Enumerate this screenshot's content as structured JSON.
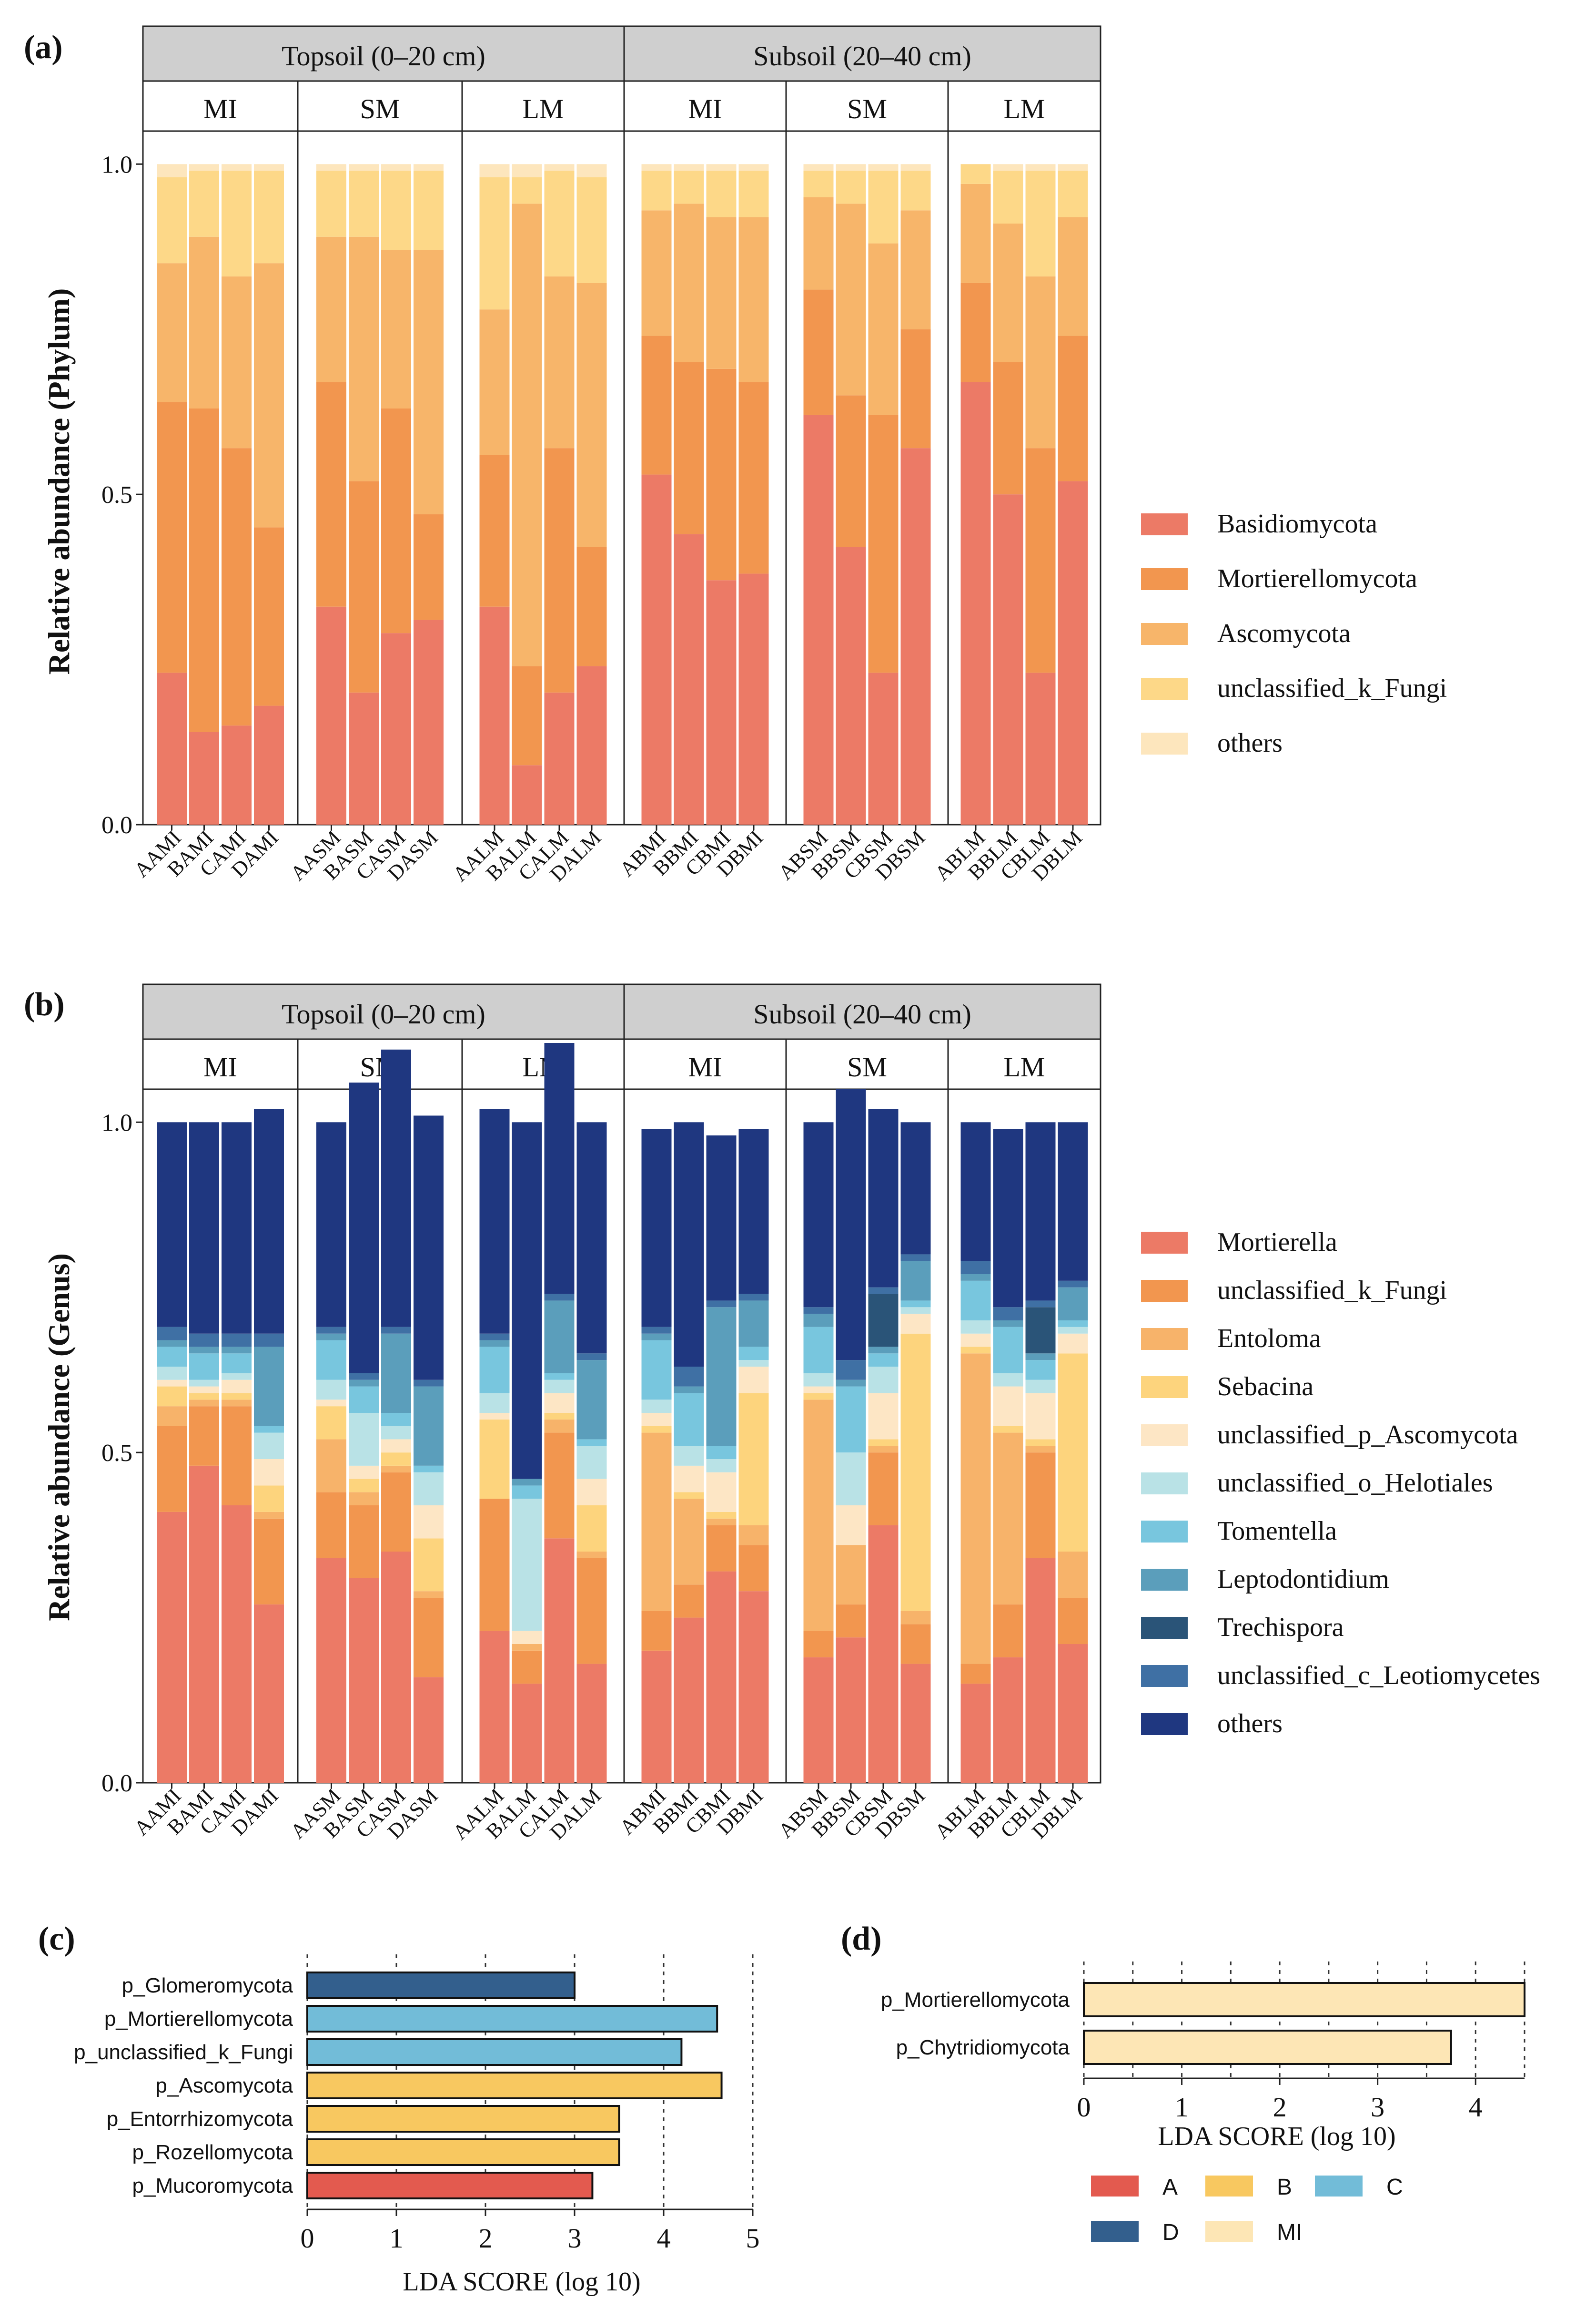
{
  "colors": {
    "strip_bg": "#cfcfcf",
    "phylum": [
      "#ec7a66",
      "#f2964f",
      "#f7b56a",
      "#fdd888",
      "#fde6bd"
    ],
    "genus": [
      "#ec7a66",
      "#f2964f",
      "#f7b36a",
      "#fdd47d",
      "#fde6c5",
      "#b9e2e6",
      "#78c6de",
      "#5b9ebb",
      "#2a5478",
      "#3f70a4",
      "#1f3780"
    ],
    "lefse": {
      "A": "#e35a4f",
      "B": "#f8c860",
      "C": "#72bcd8",
      "D": "#335f8d",
      "MI": "#fde6b5"
    }
  },
  "chart_data": [
    {
      "panel_label": "(a)",
      "type": "bar",
      "subtype": "stacked-relative-abundance",
      "ylabel": "Relative abundance (Phylum)",
      "ylim": [
        0,
        1.05
      ],
      "yticks": [
        "0.0",
        "0.5",
        "1.0"
      ],
      "strips": [
        "Topsoil (0–20 cm)",
        "Subsoil (20–40 cm)"
      ],
      "groups": [
        {
          "name": "MI",
          "samples": [
            "AAMI",
            "BAMI",
            "CAMI",
            "DAMI"
          ]
        },
        {
          "name": "SM",
          "samples": [
            "AASM",
            "BASM",
            "CASM",
            "DASM"
          ]
        },
        {
          "name": "LM",
          "samples": [
            "AALM",
            "BALM",
            "CALM",
            "DALM"
          ]
        },
        {
          "name": "MI",
          "samples": [
            "ABMI",
            "BBMI",
            "CBMI",
            "DBMI"
          ]
        },
        {
          "name": "SM",
          "samples": [
            "ABSM",
            "BBSM",
            "CBSM",
            "DBSM"
          ]
        },
        {
          "name": "LM",
          "samples": [
            "ABLM",
            "BBLM",
            "CBLM",
            "DBLM"
          ]
        }
      ],
      "legend": [
        "Basidiomycota",
        "Mortierellomycota",
        "Ascomycota",
        "unclassified_k_Fungi",
        "others"
      ],
      "series": [
        {
          "name": "Basidiomycota",
          "values": [
            0.23,
            0.14,
            0.15,
            0.18,
            0.33,
            0.2,
            0.29,
            0.31,
            0.33,
            0.09,
            0.2,
            0.24,
            0.53,
            0.44,
            0.37,
            0.38,
            0.62,
            0.42,
            0.23,
            0.57,
            0.67,
            0.5,
            0.23,
            0.52
          ]
        },
        {
          "name": "Mortierellomycota",
          "values": [
            0.41,
            0.49,
            0.42,
            0.27,
            0.34,
            0.32,
            0.34,
            0.16,
            0.23,
            0.15,
            0.37,
            0.18,
            0.21,
            0.26,
            0.32,
            0.29,
            0.19,
            0.23,
            0.39,
            0.18,
            0.15,
            0.2,
            0.34,
            0.22
          ]
        },
        {
          "name": "Ascomycota",
          "values": [
            0.21,
            0.26,
            0.26,
            0.4,
            0.22,
            0.37,
            0.24,
            0.4,
            0.22,
            0.7,
            0.26,
            0.4,
            0.19,
            0.24,
            0.23,
            0.25,
            0.14,
            0.29,
            0.26,
            0.18,
            0.15,
            0.21,
            0.26,
            0.18
          ]
        },
        {
          "name": "unclassified_k_Fungi",
          "values": [
            0.13,
            0.1,
            0.16,
            0.14,
            0.1,
            0.1,
            0.12,
            0.12,
            0.2,
            0.04,
            0.16,
            0.16,
            0.06,
            0.05,
            0.07,
            0.07,
            0.04,
            0.05,
            0.11,
            0.06,
            0.03,
            0.08,
            0.16,
            0.07
          ]
        },
        {
          "name": "others",
          "values": [
            0.02,
            0.01,
            0.01,
            0.01,
            0.01,
            0.01,
            0.01,
            0.01,
            0.02,
            0.02,
            0.01,
            0.02,
            0.01,
            0.01,
            0.01,
            0.01,
            0.01,
            0.01,
            0.01,
            0.01,
            0.0,
            0.01,
            0.01,
            0.01
          ]
        }
      ]
    },
    {
      "panel_label": "(b)",
      "type": "bar",
      "subtype": "stacked-relative-abundance",
      "ylabel": "Relative abundance (Genus)",
      "ylim": [
        0,
        1.05
      ],
      "yticks": [
        "0.0",
        "0.5",
        "1.0"
      ],
      "strips": [
        "Topsoil (0–20 cm)",
        "Subsoil (20–40 cm)"
      ],
      "groups": [
        {
          "name": "MI",
          "samples": [
            "AAMI",
            "BAMI",
            "CAMI",
            "DAMI"
          ]
        },
        {
          "name": "SM",
          "samples": [
            "AASM",
            "BASM",
            "CASM",
            "DASM"
          ]
        },
        {
          "name": "LM",
          "samples": [
            "AALM",
            "BALM",
            "CALM",
            "DALM"
          ]
        },
        {
          "name": "MI",
          "samples": [
            "ABMI",
            "BBMI",
            "CBMI",
            "DBMI"
          ]
        },
        {
          "name": "SM",
          "samples": [
            "ABSM",
            "BBSM",
            "CBSM",
            "DBSM"
          ]
        },
        {
          "name": "LM",
          "samples": [
            "ABLM",
            "BBLM",
            "CBLM",
            "DBLM"
          ]
        }
      ],
      "legend": [
        "Mortierella",
        "unclassified_k_Fungi",
        "Entoloma",
        "Sebacina",
        "unclassified_p_Ascomycota",
        "unclassified_o_Helotiales",
        "Tomentella",
        "Leptodontidium",
        "Trechispora",
        "unclassified_c_Leotiomycetes",
        "others"
      ],
      "series": [
        {
          "name": "Mortierella",
          "values": [
            0.41,
            0.48,
            0.42,
            0.27,
            0.34,
            0.31,
            0.35,
            0.16,
            0.23,
            0.15,
            0.37,
            0.18,
            0.2,
            0.25,
            0.32,
            0.29,
            0.19,
            0.22,
            0.39,
            0.18,
            0.15,
            0.19,
            0.34,
            0.21
          ]
        },
        {
          "name": "unclassified_k_Fungi",
          "values": [
            0.13,
            0.09,
            0.15,
            0.13,
            0.1,
            0.11,
            0.12,
            0.12,
            0.2,
            0.05,
            0.16,
            0.16,
            0.06,
            0.05,
            0.07,
            0.07,
            0.04,
            0.05,
            0.11,
            0.06,
            0.03,
            0.08,
            0.16,
            0.07
          ]
        },
        {
          "name": "Entoloma",
          "values": [
            0.03,
            0.01,
            0.01,
            0.01,
            0.08,
            0.02,
            0.01,
            0.01,
            0.0,
            0.01,
            0.02,
            0.01,
            0.27,
            0.13,
            0.01,
            0.03,
            0.35,
            0.09,
            0.01,
            0.02,
            0.47,
            0.26,
            0.01,
            0.07
          ]
        },
        {
          "name": "Sebacina",
          "values": [
            0.03,
            0.01,
            0.01,
            0.04,
            0.05,
            0.02,
            0.02,
            0.08,
            0.12,
            0.0,
            0.01,
            0.07,
            0.01,
            0.01,
            0.01,
            0.2,
            0.01,
            0.0,
            0.01,
            0.42,
            0.01,
            0.01,
            0.01,
            0.3
          ]
        },
        {
          "name": "unclassified_p_Ascomycota",
          "values": [
            0.01,
            0.01,
            0.02,
            0.04,
            0.01,
            0.02,
            0.02,
            0.05,
            0.01,
            0.02,
            0.03,
            0.04,
            0.02,
            0.04,
            0.06,
            0.04,
            0.01,
            0.06,
            0.07,
            0.03,
            0.02,
            0.06,
            0.07,
            0.03
          ]
        },
        {
          "name": "unclassified_o_Helotiales",
          "values": [
            0.02,
            0.01,
            0.01,
            0.04,
            0.03,
            0.08,
            0.02,
            0.05,
            0.03,
            0.2,
            0.02,
            0.05,
            0.02,
            0.03,
            0.02,
            0.01,
            0.02,
            0.08,
            0.04,
            0.01,
            0.02,
            0.02,
            0.02,
            0.01
          ]
        },
        {
          "name": "Tomentella",
          "values": [
            0.03,
            0.04,
            0.03,
            0.01,
            0.06,
            0.04,
            0.02,
            0.01,
            0.07,
            0.02,
            0.01,
            0.01,
            0.09,
            0.08,
            0.02,
            0.02,
            0.07,
            0.1,
            0.02,
            0.01,
            0.06,
            0.07,
            0.03,
            0.01
          ]
        },
        {
          "name": "Leptodontidium",
          "values": [
            0.01,
            0.01,
            0.01,
            0.12,
            0.01,
            0.01,
            0.12,
            0.12,
            0.01,
            0.01,
            0.11,
            0.12,
            0.01,
            0.01,
            0.21,
            0.07,
            0.02,
            0.01,
            0.01,
            0.06,
            0.01,
            0.01,
            0.01,
            0.05
          ]
        },
        {
          "name": "Trechispora",
          "values": [
            0.0,
            0.0,
            0.0,
            0.0,
            0.0,
            0.0,
            0.0,
            0.0,
            0.0,
            0.0,
            0.0,
            0.0,
            0.0,
            0.0,
            0.0,
            0.0,
            0.0,
            0.0,
            0.08,
            0.0,
            0.0,
            0.0,
            0.07,
            0.0
          ]
        },
        {
          "name": "unclassified_c_Leotiomycetes",
          "values": [
            0.02,
            0.02,
            0.02,
            0.02,
            0.01,
            0.01,
            0.01,
            0.01,
            0.01,
            0.0,
            0.01,
            0.01,
            0.01,
            0.03,
            0.01,
            0.01,
            0.01,
            0.03,
            0.01,
            0.01,
            0.02,
            0.02,
            0.01,
            0.01
          ]
        },
        {
          "name": "others",
          "values": [
            0.31,
            0.32,
            0.32,
            0.34,
            0.31,
            0.44,
            0.42,
            0.4,
            0.34,
            0.54,
            0.38,
            0.35,
            0.3,
            0.37,
            0.25,
            0.25,
            0.28,
            0.41,
            0.27,
            0.2,
            0.21,
            0.27,
            0.27,
            0.24
          ]
        }
      ]
    },
    {
      "panel_label": "(c)",
      "type": "bar",
      "subtype": "horizontal-lda",
      "xlabel": "LDA SCORE (log 10)",
      "xlim": [
        0,
        5
      ],
      "xticks": [
        "0",
        "1",
        "2",
        "3",
        "4",
        "5"
      ],
      "categories": [
        "p_Glomeromycota",
        "p_Mortierellomycota",
        "p_unclassified_k_Fungi",
        "p_Ascomycota",
        "p_Entorrhizomycota",
        "p_Rozellomycota",
        "p_Mucoromycota"
      ],
      "values": [
        3.0,
        4.6,
        4.2,
        4.65,
        3.5,
        3.5,
        3.2
      ],
      "groups": [
        "D",
        "C",
        "C",
        "B",
        "B",
        "B",
        "A"
      ]
    },
    {
      "panel_label": "(d)",
      "type": "bar",
      "subtype": "horizontal-lda",
      "xlabel": "LDA SCORE (log 10)",
      "xlim": [
        0,
        4.5
      ],
      "xticks": [
        "0",
        "1",
        "2",
        "3",
        "4"
      ],
      "categories": [
        "p_Mortierellomycota",
        "p_Chytridiomycota"
      ],
      "values": [
        4.5,
        3.75
      ],
      "groups": [
        "MI",
        "MI"
      ]
    }
  ],
  "lefse_legend": [
    {
      "label": "A",
      "key": "A"
    },
    {
      "label": "B",
      "key": "B"
    },
    {
      "label": "C",
      "key": "C"
    },
    {
      "label": "D",
      "key": "D"
    },
    {
      "label": "MI",
      "key": "MI"
    }
  ]
}
